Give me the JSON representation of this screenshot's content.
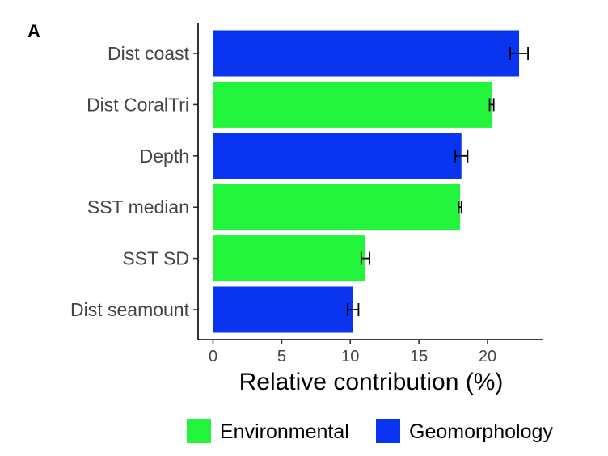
{
  "panel_label": "A",
  "chart_data": {
    "type": "bar",
    "orientation": "horizontal",
    "title": "",
    "xlabel": "Relative contribution (%)",
    "ylabel": "",
    "xlim": [
      0,
      24
    ],
    "xticks": [
      0,
      5,
      10,
      15,
      20
    ],
    "grid": false,
    "legend_position": "bottom",
    "categories": [
      "Dist coast",
      "Dist CoralTri",
      "Depth",
      "SST median",
      "SST SD",
      "Dist seamount"
    ],
    "values": [
      22.3,
      20.3,
      18.1,
      18.0,
      11.1,
      10.2
    ],
    "errors": [
      0.65,
      0.15,
      0.45,
      0.1,
      0.3,
      0.4
    ],
    "groups": [
      "Geomorphology",
      "Environmental",
      "Geomorphology",
      "Environmental",
      "Environmental",
      "Geomorphology"
    ],
    "legend": [
      {
        "name": "Environmental",
        "color": "#22f53b"
      },
      {
        "name": "Geomorphology",
        "color": "#0a35f0"
      }
    ]
  }
}
